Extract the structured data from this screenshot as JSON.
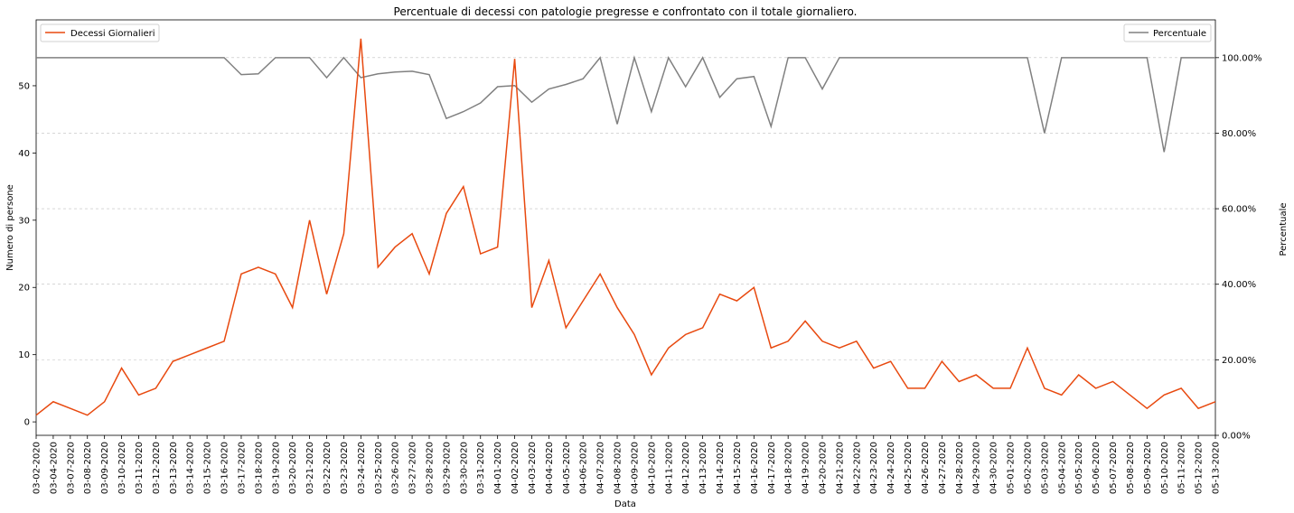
{
  "chart_data": {
    "type": "line",
    "title": "Percentuale di decessi con patologie pregresse e confrontato con il totale giornaliero.",
    "xlabel": "Data",
    "ylabel_left": "Numero di persone",
    "ylabel_right": "Percentuale",
    "categories": [
      "03-02-2020",
      "03-04-2020",
      "03-07-2020",
      "03-08-2020",
      "03-09-2020",
      "03-10-2020",
      "03-11-2020",
      "03-12-2020",
      "03-13-2020",
      "03-14-2020",
      "03-15-2020",
      "03-16-2020",
      "03-17-2020",
      "03-18-2020",
      "03-19-2020",
      "03-20-2020",
      "03-21-2020",
      "03-22-2020",
      "03-23-2020",
      "03-24-2020",
      "03-25-2020",
      "03-26-2020",
      "03-27-2020",
      "03-28-2020",
      "03-29-2020",
      "03-30-2020",
      "03-31-2020",
      "04-01-2020",
      "04-02-2020",
      "04-03-2020",
      "04-04-2020",
      "04-05-2020",
      "04-06-2020",
      "04-07-2020",
      "04-08-2020",
      "04-09-2020",
      "04-10-2020",
      "04-11-2020",
      "04-12-2020",
      "04-13-2020",
      "04-14-2020",
      "04-15-2020",
      "04-16-2020",
      "04-17-2020",
      "04-18-2020",
      "04-19-2020",
      "04-20-2020",
      "04-21-2020",
      "04-22-2020",
      "04-23-2020",
      "04-24-2020",
      "04-25-2020",
      "04-26-2020",
      "04-27-2020",
      "04-28-2020",
      "04-29-2020",
      "04-30-2020",
      "05-01-2020",
      "05-02-2020",
      "05-03-2020",
      "05-04-2020",
      "05-05-2020",
      "05-06-2020",
      "05-07-2020",
      "05-08-2020",
      "05-09-2020",
      "05-10-2020",
      "05-11-2020",
      "05-12-2020",
      "05-13-2020"
    ],
    "series": [
      {
        "name": "Decessi Giornalieri",
        "axis": "left",
        "color": "#e8490f",
        "values": [
          1,
          3,
          2,
          1,
          3,
          8,
          4,
          5,
          9,
          10,
          11,
          12,
          22,
          23,
          22,
          17,
          30,
          19,
          28,
          57,
          23,
          26,
          28,
          22,
          31,
          35,
          25,
          26,
          54,
          17,
          24,
          14,
          18,
          22,
          17,
          13,
          7,
          11,
          13,
          14,
          19,
          18,
          20,
          11,
          12,
          15,
          12,
          11,
          12,
          8,
          9,
          5,
          5,
          9,
          6,
          7,
          5,
          5,
          11,
          5,
          4,
          7,
          5,
          6,
          4,
          2,
          4,
          5,
          2,
          3
        ]
      },
      {
        "name": "Percentuale",
        "axis": "right",
        "color": "#808080",
        "values": [
          100,
          100,
          100,
          100,
          100,
          100,
          100,
          100,
          100,
          100,
          100,
          100,
          95.5,
          95.7,
          100,
          100,
          100,
          94.7,
          100,
          94.7,
          95.7,
          96.2,
          96.4,
          95.5,
          83.9,
          85.7,
          88,
          92.3,
          92.6,
          88.2,
          91.7,
          92.9,
          94.4,
          100,
          82.4,
          100,
          85.7,
          100,
          92.3,
          100,
          89.5,
          94.4,
          95,
          81.8,
          100,
          100,
          91.7,
          100,
          100,
          100,
          100,
          100,
          100,
          100,
          100,
          100,
          100,
          100,
          100,
          80,
          100,
          100,
          100,
          100,
          100,
          100,
          75,
          100,
          100,
          100
        ]
      }
    ],
    "ylim_left": [
      -2,
      59.8
    ],
    "ylim_right": [
      0,
      110
    ],
    "yticks_left": [
      0,
      10,
      20,
      30,
      40,
      50
    ],
    "yticks_right": [
      "0.00%",
      "20.00%",
      "40.00%",
      "60.00%",
      "80.00%",
      "100.00%"
    ],
    "grid": "horizontal dashed (right axis)",
    "legend_left": {
      "label": "Decessi Giornalieri",
      "placement": "upper left"
    },
    "legend_right": {
      "label": "Percentuale",
      "placement": "upper right"
    }
  }
}
